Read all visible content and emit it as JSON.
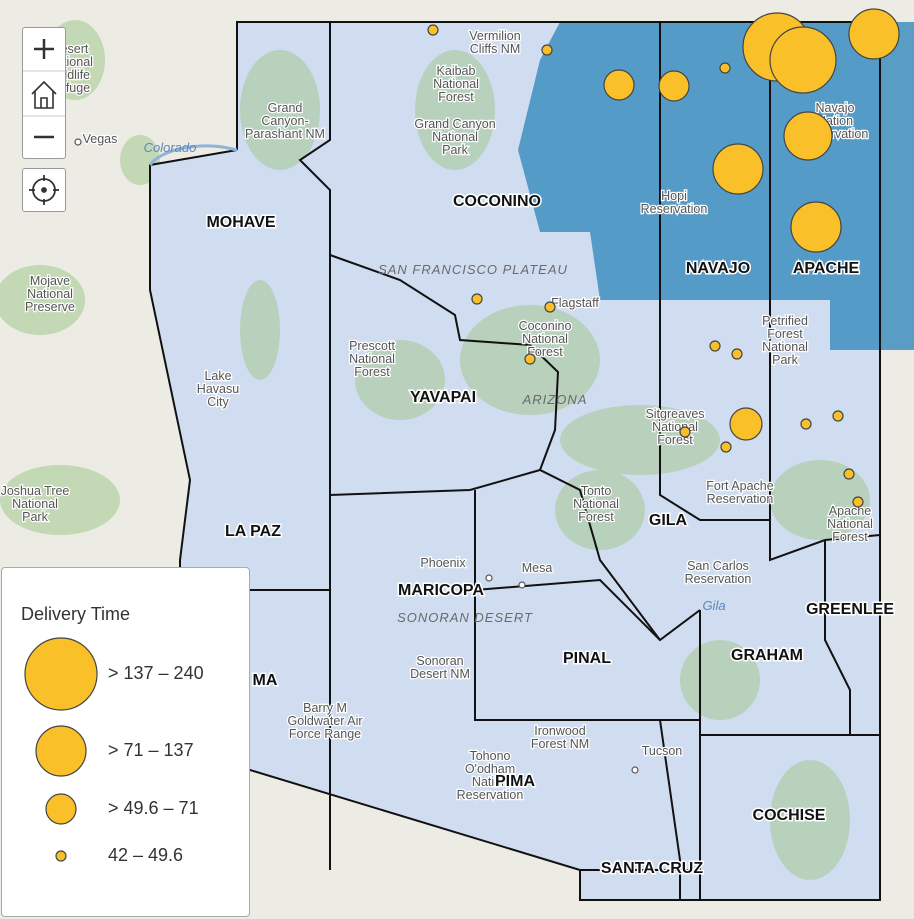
{
  "counties": [
    "MOHAVE",
    "COCONINO",
    "NAVAJO",
    "APACHE",
    "YAVAPAI",
    "LA PAZ",
    "MARICOPA",
    "GILA",
    "PINAL",
    "GRAHAM",
    "GREENLEE",
    "COCHISE",
    "PIMA",
    "SANTA CRUZ",
    "MA"
  ],
  "places": [
    [
      "Vegas"
    ],
    [
      "Flagstaff"
    ],
    [
      "Phoenix"
    ],
    [
      "Mesa"
    ],
    [
      "Tucson"
    ],
    [
      "Lake",
      "Havasu",
      "City"
    ],
    [
      "Vermilion",
      "Cliffs NM"
    ],
    [
      "Kaibab",
      "National",
      "Forest"
    ],
    [
      "Grand",
      "Canyon-",
      "Parashant NM"
    ],
    [
      "Grand Canyon",
      "National",
      "Park"
    ],
    [
      "Hopi",
      "Reservation"
    ],
    [
      "Navajo",
      "Nation",
      "Reservation"
    ],
    [
      "Petrified",
      "Forest",
      "National",
      "Park"
    ],
    [
      "Coconino",
      "National",
      "Forest"
    ],
    [
      "Prescott",
      "National",
      "Forest"
    ],
    [
      "Sitgreaves",
      "National",
      "Forest"
    ],
    [
      "Tonto",
      "National",
      "Forest"
    ],
    [
      "Fort Apache",
      "Reservation"
    ],
    [
      "Apache",
      "National",
      "Forest"
    ],
    [
      "San Carlos",
      "Reservation"
    ],
    [
      "Sonoran",
      "Desert NM"
    ],
    [
      "Barry M",
      "Goldwater Air",
      "Force Range"
    ],
    [
      "Ironwood",
      "Forest NM"
    ],
    [
      "Tohono",
      "O'odham",
      "Nation",
      "Reservation"
    ],
    [
      "Mojave",
      "National",
      "Preserve"
    ],
    [
      "Desert",
      "National",
      "Wildlife",
      "Refuge"
    ],
    [
      "Joshua Tree",
      "National",
      "Park"
    ]
  ],
  "features": [
    "SAN FRANCISCO PLATEAU",
    "ARIZONA",
    "SONORAN DESERT",
    "Colorado",
    "Gila"
  ],
  "legend": {
    "title": "Delivery Time",
    "items": [
      "> 137 – 240",
      "> 71 – 137",
      "> 49.6 – 71",
      "42 – 49.6"
    ]
  }
}
